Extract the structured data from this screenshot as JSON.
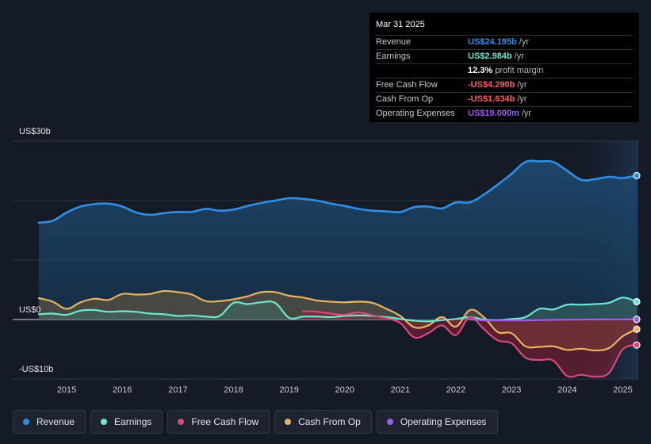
{
  "colors": {
    "revenue": "#2f8fe6",
    "earnings": "#6ee7d2",
    "free_cash_flow": "#d9487c",
    "cash_from_op": "#e9b35f",
    "operating_expenses": "#9b5cf0",
    "negative_red": "#ff5b5b"
  },
  "tooltip": {
    "date": "Mar 31 2025",
    "rows": [
      {
        "label": "Revenue",
        "value": "US$24.195b",
        "unit": "/yr",
        "color": "#2f8fe6"
      },
      {
        "label": "Earnings",
        "value": "US$2.984b",
        "unit": "/yr",
        "color": "#6ee7d2"
      },
      {
        "label": "",
        "value": "12.3%",
        "unit": "profit margin",
        "color": "#ffffff"
      },
      {
        "label": "Free Cash Flow",
        "value": "-US$4.290b",
        "unit": "/yr",
        "color": "#ff5b5b"
      },
      {
        "label": "Cash From Op",
        "value": "-US$1.634b",
        "unit": "/yr",
        "color": "#ff5b5b"
      },
      {
        "label": "Operating Expenses",
        "value": "US$19.000m",
        "unit": "/yr",
        "color": "#9b5cf0"
      }
    ]
  },
  "legend": [
    {
      "label": "Revenue",
      "color": "#2f8fe6"
    },
    {
      "label": "Earnings",
      "color": "#6ee7d2"
    },
    {
      "label": "Free Cash Flow",
      "color": "#d9487c"
    },
    {
      "label": "Cash From Op",
      "color": "#e9b35f"
    },
    {
      "label": "Operating Expenses",
      "color": "#9b5cf0"
    }
  ],
  "chart_data": {
    "type": "area",
    "title": "",
    "y_labels": [
      "US$30b",
      "US$0",
      "-US$10b"
    ],
    "ylim": [
      -10,
      30
    ],
    "xlim": [
      2014.5,
      2025.25
    ],
    "x_ticks": [
      "2015",
      "2016",
      "2017",
      "2018",
      "2019",
      "2020",
      "2021",
      "2022",
      "2023",
      "2024",
      "2025"
    ],
    "forecast_start": 2024.25,
    "series": [
      {
        "name": "Revenue",
        "key": "revenue",
        "points": [
          [
            2014.5,
            16.3
          ],
          [
            2014.75,
            16.6
          ],
          [
            2015.0,
            18.0
          ],
          [
            2015.25,
            19.0
          ],
          [
            2015.5,
            19.4
          ],
          [
            2015.75,
            19.5
          ],
          [
            2016.0,
            19.0
          ],
          [
            2016.25,
            18.0
          ],
          [
            2016.5,
            17.6
          ],
          [
            2016.75,
            17.9
          ],
          [
            2017.0,
            18.1
          ],
          [
            2017.25,
            18.1
          ],
          [
            2017.5,
            18.6
          ],
          [
            2017.75,
            18.3
          ],
          [
            2018.0,
            18.5
          ],
          [
            2018.25,
            19.1
          ],
          [
            2018.5,
            19.6
          ],
          [
            2018.75,
            20.0
          ],
          [
            2019.0,
            20.4
          ],
          [
            2019.25,
            20.3
          ],
          [
            2019.5,
            20.0
          ],
          [
            2019.75,
            19.5
          ],
          [
            2020.0,
            19.1
          ],
          [
            2020.25,
            18.6
          ],
          [
            2020.5,
            18.3
          ],
          [
            2020.75,
            18.2
          ],
          [
            2021.0,
            18.1
          ],
          [
            2021.25,
            18.9
          ],
          [
            2021.5,
            19.0
          ],
          [
            2021.75,
            18.7
          ],
          [
            2022.0,
            19.7
          ],
          [
            2022.25,
            19.7
          ],
          [
            2022.5,
            21.0
          ],
          [
            2022.75,
            22.7
          ],
          [
            2023.0,
            24.5
          ],
          [
            2023.25,
            26.5
          ],
          [
            2023.5,
            26.6
          ],
          [
            2023.75,
            26.5
          ],
          [
            2024.0,
            25.0
          ],
          [
            2024.25,
            23.5
          ],
          [
            2024.5,
            23.6
          ],
          [
            2024.75,
            24.0
          ],
          [
            2025.0,
            23.8
          ],
          [
            2025.25,
            24.2
          ]
        ]
      },
      {
        "name": "Earnings",
        "key": "earnings",
        "points": [
          [
            2014.5,
            0.9
          ],
          [
            2014.75,
            1.0
          ],
          [
            2015.0,
            0.8
          ],
          [
            2015.25,
            1.5
          ],
          [
            2015.5,
            1.6
          ],
          [
            2015.75,
            1.3
          ],
          [
            2016.0,
            1.4
          ],
          [
            2016.25,
            1.3
          ],
          [
            2016.5,
            1.0
          ],
          [
            2016.75,
            0.9
          ],
          [
            2017.0,
            0.6
          ],
          [
            2017.25,
            0.7
          ],
          [
            2017.5,
            0.5
          ],
          [
            2017.75,
            0.6
          ],
          [
            2018.0,
            2.8
          ],
          [
            2018.25,
            2.6
          ],
          [
            2018.5,
            2.9
          ],
          [
            2018.75,
            2.8
          ],
          [
            2019.0,
            0.3
          ],
          [
            2019.25,
            0.5
          ],
          [
            2019.5,
            0.5
          ],
          [
            2019.75,
            0.4
          ],
          [
            2020.0,
            0.6
          ],
          [
            2020.25,
            0.7
          ],
          [
            2020.5,
            0.6
          ],
          [
            2020.75,
            0.4
          ],
          [
            2021.0,
            0.1
          ],
          [
            2021.25,
            -0.2
          ],
          [
            2021.5,
            -0.3
          ],
          [
            2021.75,
            -0.1
          ],
          [
            2022.0,
            0.1
          ],
          [
            2022.25,
            0.4
          ],
          [
            2022.5,
            0.0
          ],
          [
            2022.75,
            -0.1
          ],
          [
            2023.0,
            0.1
          ],
          [
            2023.25,
            0.4
          ],
          [
            2023.5,
            1.8
          ],
          [
            2023.75,
            1.7
          ],
          [
            2024.0,
            2.5
          ],
          [
            2024.25,
            2.5
          ],
          [
            2024.5,
            2.6
          ],
          [
            2024.75,
            2.8
          ],
          [
            2025.0,
            3.7
          ],
          [
            2025.25,
            3.0
          ]
        ]
      },
      {
        "name": "Free Cash Flow",
        "key": "free_cash_flow",
        "points": [
          [
            2019.25,
            1.4
          ],
          [
            2019.5,
            1.3
          ],
          [
            2019.75,
            1.0
          ],
          [
            2020.0,
            0.8
          ],
          [
            2020.25,
            1.2
          ],
          [
            2020.5,
            0.7
          ],
          [
            2020.75,
            0.2
          ],
          [
            2021.0,
            -0.6
          ],
          [
            2021.25,
            -3.0
          ],
          [
            2021.5,
            -2.3
          ],
          [
            2021.75,
            -1.0
          ],
          [
            2022.0,
            -2.6
          ],
          [
            2022.25,
            0.4
          ],
          [
            2022.5,
            -1.6
          ],
          [
            2022.75,
            -3.5
          ],
          [
            2023.0,
            -4.0
          ],
          [
            2023.25,
            -6.4
          ],
          [
            2023.5,
            -6.8
          ],
          [
            2023.75,
            -6.9
          ],
          [
            2024.0,
            -9.5
          ],
          [
            2024.25,
            -9.3
          ],
          [
            2024.5,
            -9.6
          ],
          [
            2024.75,
            -9.0
          ],
          [
            2025.0,
            -5.0
          ],
          [
            2025.25,
            -4.29
          ]
        ]
      },
      {
        "name": "Cash From Op",
        "key": "cash_from_op",
        "points": [
          [
            2014.5,
            3.6
          ],
          [
            2014.75,
            3.0
          ],
          [
            2015.0,
            1.8
          ],
          [
            2015.25,
            2.9
          ],
          [
            2015.5,
            3.5
          ],
          [
            2015.75,
            3.3
          ],
          [
            2016.0,
            4.3
          ],
          [
            2016.25,
            4.2
          ],
          [
            2016.5,
            4.3
          ],
          [
            2016.75,
            4.8
          ],
          [
            2017.0,
            4.6
          ],
          [
            2017.25,
            4.2
          ],
          [
            2017.5,
            3.1
          ],
          [
            2017.75,
            3.1
          ],
          [
            2018.0,
            3.4
          ],
          [
            2018.25,
            3.9
          ],
          [
            2018.5,
            4.6
          ],
          [
            2018.75,
            4.6
          ],
          [
            2019.0,
            4.0
          ],
          [
            2019.25,
            3.7
          ],
          [
            2019.5,
            3.2
          ],
          [
            2019.75,
            3.0
          ],
          [
            2020.0,
            2.9
          ],
          [
            2020.25,
            3.0
          ],
          [
            2020.5,
            2.8
          ],
          [
            2020.75,
            1.8
          ],
          [
            2021.0,
            0.6
          ],
          [
            2021.25,
            -1.3
          ],
          [
            2021.5,
            -1.0
          ],
          [
            2021.75,
            0.4
          ],
          [
            2022.0,
            -1.2
          ],
          [
            2022.25,
            1.6
          ],
          [
            2022.5,
            0.4
          ],
          [
            2022.75,
            -2.1
          ],
          [
            2023.0,
            -2.3
          ],
          [
            2023.25,
            -4.5
          ],
          [
            2023.5,
            -4.6
          ],
          [
            2023.75,
            -4.5
          ],
          [
            2024.0,
            -5.1
          ],
          [
            2024.25,
            -4.9
          ],
          [
            2024.5,
            -5.2
          ],
          [
            2024.75,
            -4.8
          ],
          [
            2025.0,
            -2.8
          ],
          [
            2025.25,
            -1.634
          ]
        ]
      },
      {
        "name": "Operating Expenses",
        "key": "operating_expenses",
        "points": [
          [
            2022.25,
            0.02
          ],
          [
            2022.5,
            -0.15
          ],
          [
            2022.75,
            -0.15
          ],
          [
            2023.0,
            -0.15
          ],
          [
            2023.25,
            -0.15
          ],
          [
            2023.5,
            -0.1
          ],
          [
            2023.75,
            -0.05
          ],
          [
            2024.0,
            -0.02
          ],
          [
            2024.25,
            0.0
          ],
          [
            2024.5,
            0.01
          ],
          [
            2024.75,
            0.01
          ],
          [
            2025.0,
            0.02
          ],
          [
            2025.25,
            0.019
          ]
        ]
      }
    ]
  }
}
